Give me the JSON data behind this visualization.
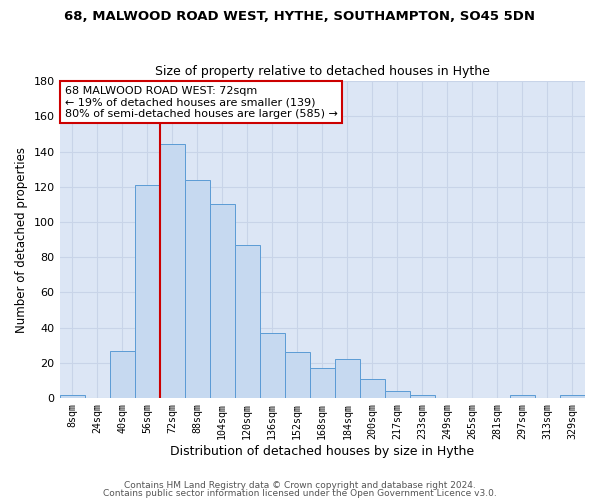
{
  "title1": "68, MALWOOD ROAD WEST, HYTHE, SOUTHAMPTON, SO45 5DN",
  "title2": "Size of property relative to detached houses in Hythe",
  "xlabel": "Distribution of detached houses by size in Hythe",
  "ylabel": "Number of detached properties",
  "bar_labels": [
    "8sqm",
    "24sqm",
    "40sqm",
    "56sqm",
    "72sqm",
    "88sqm",
    "104sqm",
    "120sqm",
    "136sqm",
    "152sqm",
    "168sqm",
    "184sqm",
    "200sqm",
    "217sqm",
    "233sqm",
    "249sqm",
    "265sqm",
    "281sqm",
    "297sqm",
    "313sqm",
    "329sqm"
  ],
  "bar_values": [
    2,
    0,
    27,
    121,
    144,
    124,
    110,
    87,
    37,
    26,
    17,
    22,
    11,
    4,
    2,
    0,
    0,
    0,
    2,
    0,
    2
  ],
  "bar_color": "#c6d9f0",
  "bar_edge_color": "#5b9bd5",
  "vline_color": "#cc0000",
  "vline_bar_index": 4,
  "annotation_text": "68 MALWOOD ROAD WEST: 72sqm\n← 19% of detached houses are smaller (139)\n80% of semi-detached houses are larger (585) →",
  "annotation_box_color": "white",
  "annotation_box_edge_color": "#cc0000",
  "ylim": [
    0,
    180
  ],
  "yticks": [
    0,
    20,
    40,
    60,
    80,
    100,
    120,
    140,
    160,
    180
  ],
  "grid_color": "#c8d4e8",
  "background_color": "#dce6f5",
  "footer1": "Contains HM Land Registry data © Crown copyright and database right 2024.",
  "footer2": "Contains public sector information licensed under the Open Government Licence v3.0."
}
